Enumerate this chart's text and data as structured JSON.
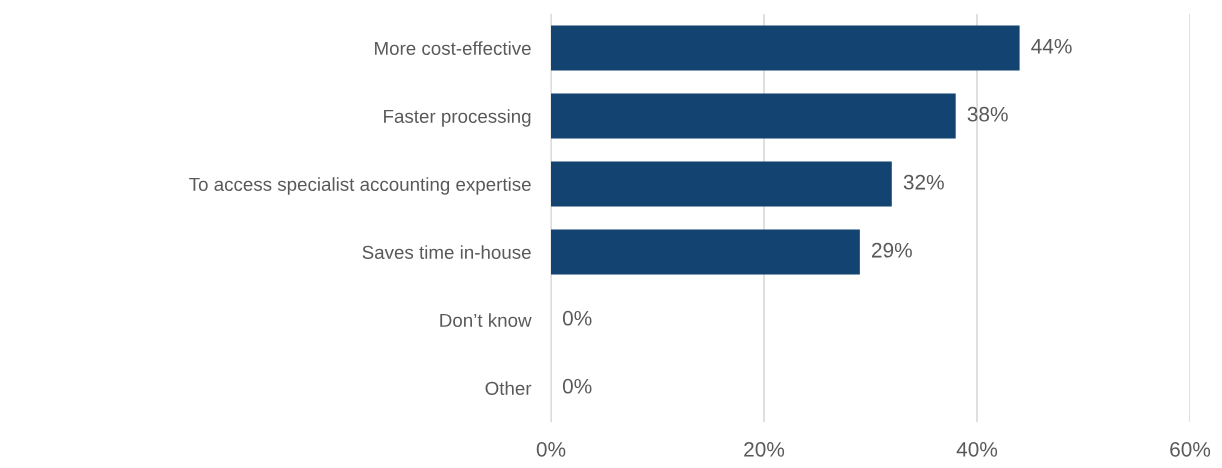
{
  "chart_data": {
    "type": "bar",
    "orientation": "horizontal",
    "categories": [
      "More cost-effective",
      "Faster processing",
      "To access specialist accounting expertise",
      "Saves time in-house",
      "Don’t know",
      "Other"
    ],
    "values": [
      44,
      38,
      32,
      29,
      0,
      0
    ],
    "value_labels": [
      "44%",
      "38%",
      "32%",
      "29%",
      "0%",
      "0%"
    ],
    "color": "#134370",
    "xlim": [
      0,
      60
    ],
    "xticks": [
      {
        "value": 0,
        "label": "0%"
      },
      {
        "value": 20,
        "label": "20%"
      },
      {
        "value": 40,
        "label": "40%"
      },
      {
        "value": 60,
        "label": "60%"
      }
    ],
    "grid": "x"
  }
}
